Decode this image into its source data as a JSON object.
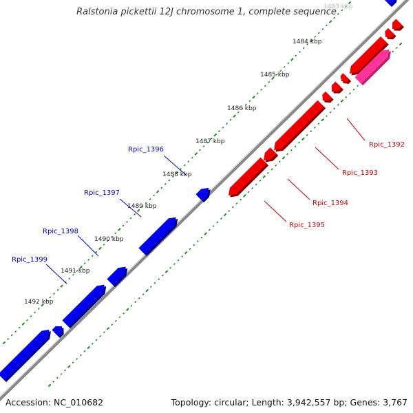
{
  "title": "Ralstonia pickettii 12J chromosome 1, complete sequence",
  "accession_text": "Accession: NC_010682",
  "summary_text": "Topology: circular; Length: 3,942,557 bp; Genes: 3,767",
  "ticks": [
    "1483 kbp",
    "1484 kbp",
    "1485 kbp",
    "1486 kbp",
    "1487 kbp",
    "1488 kbp",
    "1489 kbp",
    "1490 kbp",
    "1491 kbp",
    "1492 kbp"
  ],
  "genes_forward": [
    {
      "label": "Rpic_1396"
    },
    {
      "label": "Rpic_1397"
    },
    {
      "label": "Rpic_1398"
    },
    {
      "label": "Rpic_1399"
    }
  ],
  "genes_reverse": [
    {
      "label": "Rpic_1392"
    },
    {
      "label": "Rpic_1393"
    },
    {
      "label": "Rpic_1394"
    },
    {
      "label": "Rpic_1395"
    }
  ],
  "colors": {
    "forward": "#0000ee",
    "forward_dark": "#00008a",
    "reverse": "#ee0000",
    "reverse_dark": "#8a0000",
    "rna": "#ff3399",
    "backbone": "#888888",
    "ticks": "#1f8a1f",
    "label_forward": "#0000cc",
    "label_reverse": "#cc0000"
  }
}
